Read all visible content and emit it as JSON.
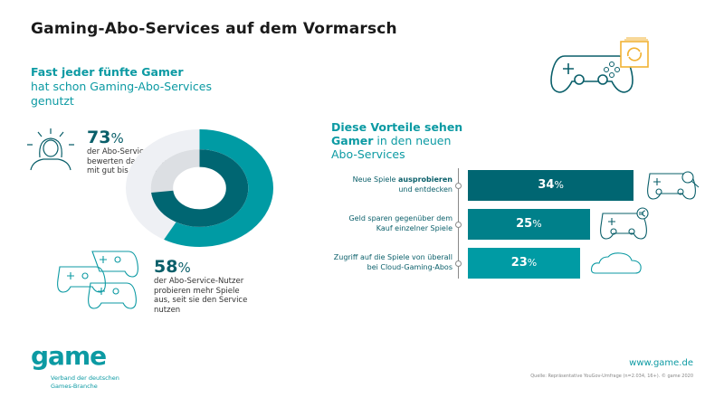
{
  "title": "Gaming-Abo-Services auf dem Vormarsch",
  "lead": {
    "bold": "Fast jeder fünfte Gamer",
    "rest": "hat schon Gaming-Abo-Services genutzt"
  },
  "stat1": {
    "value": "73",
    "unit": "%",
    "text": "der Abo-Service-Nutzer bewerten das Angebot mit gut bis sehr gut"
  },
  "stat2": {
    "value": "58",
    "unit": "%",
    "text": "der Abo-Service-Nutzer probieren mehr Spiele aus, seit sie den Service nutzen"
  },
  "bars_heading": {
    "bold1": "Diese Vorteile sehen",
    "bold2": "Gamer",
    "rest1": " in den neuen",
    "rest2": "Abo-Services"
  },
  "chart_data": [
    {
      "type": "pie",
      "variant": "donut-rings",
      "rings": [
        {
          "ring": "outer",
          "value": 58,
          "color": "#009ba4",
          "track_color": "#eef0f4"
        },
        {
          "ring": "inner",
          "value": 73,
          "color": "#006672",
          "track_color": "#dcdfe3"
        }
      ]
    },
    {
      "type": "bar",
      "orientation": "horizontal",
      "categories": [
        "Neue Spiele ausprobieren und entdecken",
        "Geld sparen gegenüber dem Kauf einzelner Spiele",
        "Zugriff auf die Spiele von überall bei Cloud-Gaming-Abos"
      ],
      "values": [
        34,
        25,
        23
      ],
      "unit": "%",
      "colors": [
        "#006672",
        "#00808a",
        "#009ba4"
      ],
      "icons": [
        "controller-magnifier-icon",
        "controller-euro-icon",
        "cloud-icon"
      ]
    }
  ],
  "bar_labels": [
    {
      "bold": "ausprobieren",
      "pre": "Neue Spiele ",
      "line2": "und entdecken"
    },
    {
      "pre": "Geld sparen gegenüber dem",
      "line2": "Kauf einzelner Spiele"
    },
    {
      "pre": "Zugriff auf die Spiele von überall",
      "line2": "bei Cloud-Gaming-Abos"
    }
  ],
  "footer": {
    "logo": "game",
    "logo_sub1": "Verband der deutschen",
    "logo_sub2": "Games-Branche",
    "url": "www.game.de",
    "source": "Quelle: Repräsentative YouGov-Umfrage (n=2.034, 16+). © game 2020"
  }
}
